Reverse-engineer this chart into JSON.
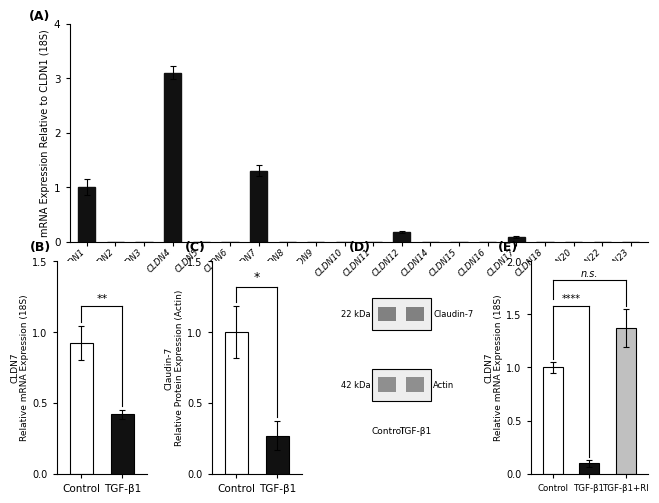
{
  "panel_A": {
    "categories": [
      "CLDN1",
      "CLDN2",
      "CLDN3",
      "CLDN4",
      "CLDN5",
      "CLDN6",
      "CLDN7",
      "CLDN8",
      "CLDN9",
      "CLDN10",
      "CLDN11",
      "CLDN12",
      "CLDN14",
      "CLDN15",
      "CLDN16",
      "CLDN17",
      "CLDN18",
      "CLDN20",
      "CLDN22",
      "CLDN23"
    ],
    "values": [
      1.0,
      0.0,
      0.0,
      3.1,
      0.0,
      0.0,
      1.3,
      0.0,
      0.0,
      0.0,
      0.0,
      0.18,
      0.0,
      0.0,
      0.0,
      0.08,
      0.0,
      0.0,
      0.0,
      0.0
    ],
    "errors": [
      0.15,
      0.0,
      0.0,
      0.12,
      0.0,
      0.0,
      0.1,
      0.0,
      0.0,
      0.0,
      0.0,
      0.02,
      0.0,
      0.0,
      0.0,
      0.02,
      0.0,
      0.0,
      0.0,
      0.0
    ],
    "ylabel": "mRNA Expression Relative to CLDN1 (18S)",
    "ylim": [
      0,
      4
    ],
    "yticks": [
      0,
      1,
      2,
      3,
      4
    ],
    "bar_color": "#111111",
    "label": "(A)"
  },
  "panel_B": {
    "categories": [
      "Control",
      "TGF-β1"
    ],
    "values": [
      0.92,
      0.42
    ],
    "errors": [
      0.12,
      0.03
    ],
    "colors": [
      "white",
      "#111111"
    ],
    "ylabel": "CLDN7\nRelative mRNA Expression (18S)",
    "ylim": [
      0,
      1.5
    ],
    "yticks": [
      0.0,
      0.5,
      1.0,
      1.5
    ],
    "significance": "**",
    "label": "(B)"
  },
  "panel_C": {
    "categories": [
      "Control",
      "TGF-β1"
    ],
    "values": [
      1.0,
      0.27
    ],
    "errors": [
      0.18,
      0.1
    ],
    "colors": [
      "white",
      "#111111"
    ],
    "ylabel": "Claudin-7\nRelative Protein Expression (Actin)",
    "ylim": [
      0,
      1.5
    ],
    "yticks": [
      0.0,
      0.5,
      1.0,
      1.5
    ],
    "significance": "*",
    "label": "(C)"
  },
  "panel_D": {
    "label": "(D)",
    "band1_label": "Claudin-7",
    "band1_kda": "22 kDa",
    "band2_label": "Actin",
    "band2_kda": "42 kDa",
    "col_labels": [
      "Control",
      "TGF-β1"
    ]
  },
  "panel_E": {
    "categories": [
      "Control",
      "TGF-β1",
      "TGF-β1+RI"
    ],
    "values": [
      1.0,
      0.1,
      1.37
    ],
    "errors": [
      0.05,
      0.03,
      0.18
    ],
    "colors": [
      "white",
      "#111111",
      "#c0c0c0"
    ],
    "ylabel": "CLDN7\nRelative mRNA Expression (18S)",
    "ylim": [
      0,
      2.0
    ],
    "yticks": [
      0.0,
      0.5,
      1.0,
      1.5,
      2.0
    ],
    "sig1": "****",
    "sig2": "n.s.",
    "label": "(E)"
  },
  "background_color": "#ffffff"
}
